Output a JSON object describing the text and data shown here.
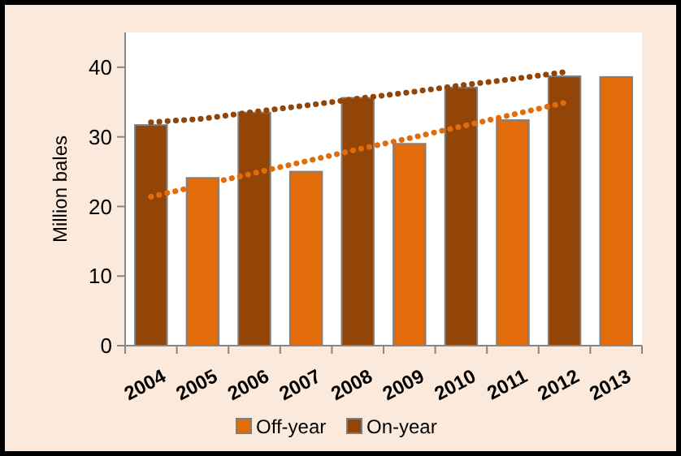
{
  "chart_data": {
    "type": "bar",
    "ylabel": "Million bales",
    "categories": [
      "2004",
      "2005",
      "2006",
      "2007",
      "2008",
      "2009",
      "2010",
      "2011",
      "2012",
      "2013"
    ],
    "series": [
      {
        "name": "Off-year",
        "color": "#e36c0a",
        "values": [
          null,
          24.1,
          null,
          25,
          null,
          29.0,
          null,
          32.4,
          null,
          38.6
        ]
      },
      {
        "name": "On-year",
        "color": "#934508",
        "values": [
          31.7,
          null,
          33.5,
          null,
          35.6,
          null,
          37.1,
          null,
          38.7,
          null
        ]
      },
      {
        "type": "line",
        "color": "#e36c0a",
        "line_style": "dotted",
        "values": [
          21.4,
          23.1,
          24.8,
          26.5,
          28.2,
          29.8,
          31.5,
          33.2,
          34.9,
          null
        ]
      },
      {
        "type": "line",
        "color": "#934508",
        "line_style": "dotted",
        "values": [
          32.1,
          32.6,
          33.6,
          34.5,
          35.5,
          36.4,
          37.4,
          38.3,
          39.3,
          null
        ]
      }
    ],
    "ylim": [
      0,
      45
    ],
    "yticks": [
      0,
      10,
      20,
      30,
      40
    ],
    "grid": false,
    "legend": "bottom"
  }
}
